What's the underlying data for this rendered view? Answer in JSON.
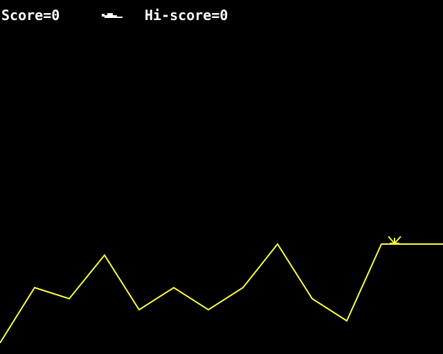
{
  "hud": {
    "score_label": "Score=0",
    "hiscore_label": "Hi-score=0",
    "lives_icon": "lander-ship-icon"
  },
  "terrain": {
    "line_color": "#ffff44",
    "marker_icon": "landing-marker-icon"
  },
  "colors": {
    "background": "#000000",
    "text": "#ffffff",
    "terrain": "#ffff44"
  }
}
